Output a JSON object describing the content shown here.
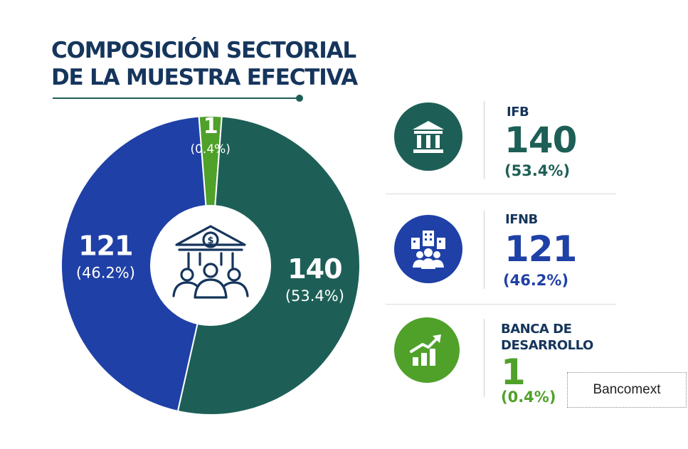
{
  "title": {
    "line1": "COMPOSICIÓN SECTORIAL",
    "line2": "DE LA MUESTRA EFECTIVA"
  },
  "chart_data": {
    "type": "pie",
    "title": "COMPOSICIÓN SECTORIAL DE LA MUESTRA EFECTIVA",
    "categories": [
      "IFB",
      "IFNB",
      "BANCA DE DESARROLLO"
    ],
    "values": [
      140,
      121,
      1
    ],
    "percent_labels": [
      "(53.4%)",
      "(46.2%)",
      "(0.4%)"
    ],
    "value_labels": [
      "140",
      "121",
      "1"
    ],
    "colors": [
      "#1d5f56",
      "#1f40a6",
      "#4fa12a"
    ],
    "legend_placement": "right",
    "center_icon": "bank-people-icon"
  },
  "legend": [
    {
      "name": "IFB",
      "value": "140",
      "pct": "(53.4%)",
      "icon": "bank-building-icon",
      "color": "#1d5f56"
    },
    {
      "name": "IFNB",
      "value": "121",
      "pct": "(46.2%)",
      "icon": "buildings-people-icon",
      "color": "#1f40a6"
    },
    {
      "name_line1": "BANCA DE",
      "name_line2": "DESARROLLO",
      "value": "1",
      "pct": "(0.4%)",
      "icon": "growth-chart-icon",
      "color": "#4fa12a"
    }
  ],
  "note": {
    "text": "Bancomext"
  }
}
